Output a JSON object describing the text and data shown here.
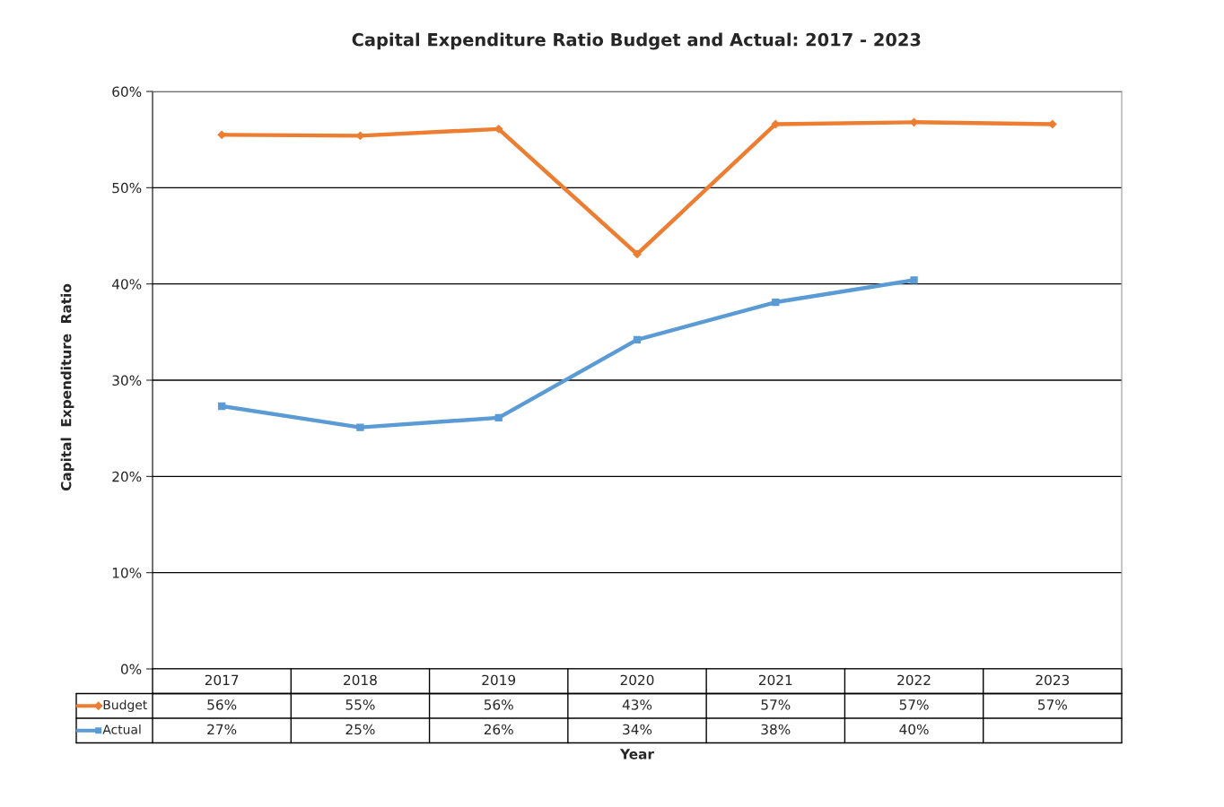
{
  "chart_data": {
    "type": "line",
    "title": "Capital Expenditure Ratio Budget and Actual: 2017 - 2023",
    "xlabel": "Year",
    "ylabel": "Capital  Expenditure  Ratio",
    "categories": [
      "2017",
      "2018",
      "2019",
      "2020",
      "2021",
      "2022",
      "2023"
    ],
    "series": [
      {
        "name": "Budget",
        "color": "#ed7d31",
        "marker": "diamond",
        "values": [
          55.5,
          55.4,
          56.1,
          43.1,
          56.6,
          56.8,
          56.6
        ],
        "value_labels": [
          "56%",
          "55%",
          "56%",
          "43%",
          "57%",
          "57%",
          "57%"
        ]
      },
      {
        "name": "Actual",
        "color": "#5b9bd5",
        "marker": "square",
        "values": [
          27.3,
          25.1,
          26.1,
          34.2,
          38.1,
          40.4,
          null
        ],
        "value_labels": [
          "27%",
          "25%",
          "26%",
          "34%",
          "38%",
          "40%",
          null
        ]
      }
    ],
    "ylim": [
      0,
      60
    ],
    "yticks": [
      {
        "value": 0,
        "label": "0%"
      },
      {
        "value": 10,
        "label": "10%"
      },
      {
        "value": 20,
        "label": "20%"
      },
      {
        "value": 30,
        "label": "30%"
      },
      {
        "value": 40,
        "label": "40%"
      },
      {
        "value": 50,
        "label": "50%"
      },
      {
        "value": 60,
        "label": "60%"
      }
    ],
    "grid": "y",
    "legend": "bottom",
    "line_style": "solid"
  }
}
